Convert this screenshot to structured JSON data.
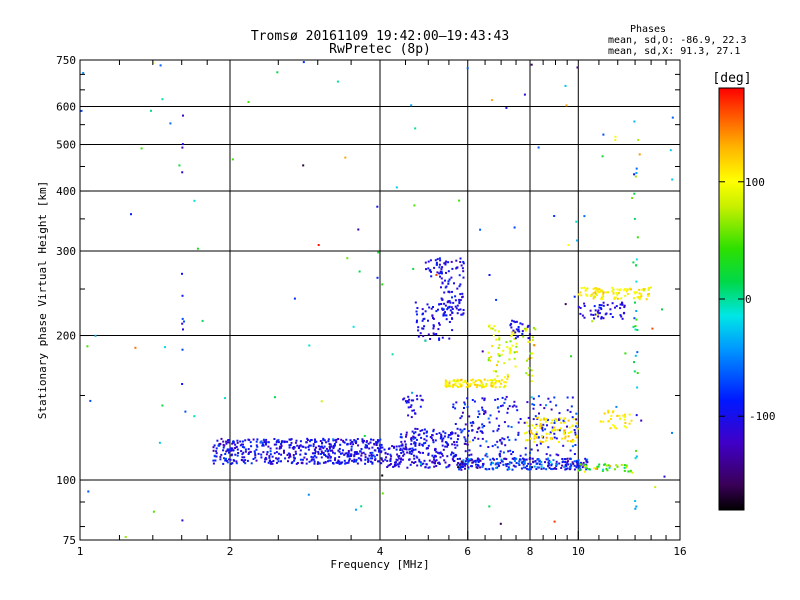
{
  "header": {
    "title_line1": "Tromsø 20161109 19:42:00–19:43:43",
    "title_line2": "RwPretec (8p)",
    "phase_title": "Phases",
    "phase_line_o": "mean, sd,O: -86.9, 22.3",
    "phase_line_x": "mean, sd,X:  91.3, 27.1"
  },
  "colorbar": {
    "unit_label": "[deg]",
    "tick_labels": [
      "100",
      "0",
      "-100"
    ],
    "tick_values": [
      100,
      0,
      -100
    ],
    "range": [
      -180,
      180
    ],
    "colormap": "rainbow (black-violet-blue-cyan-green-yellow-orange-red)"
  },
  "chart_data": {
    "type": "scatter",
    "title": "Tromsø 20161109 19:42:00–19:43:43",
    "subtitle": "RwPretec (8p)",
    "xlabel": "Frequency [MHz]",
    "ylabel": "Stationary phase Virtual Height [km]",
    "xscale": "log",
    "yscale": "log",
    "xlim": [
      1,
      16
    ],
    "ylim": [
      75,
      750
    ],
    "x_ticks": [
      1,
      2,
      4,
      6,
      8,
      10,
      16
    ],
    "x_tick_labels": [
      "1",
      "2",
      "4",
      "6",
      "8",
      "10",
      "16"
    ],
    "x_minor_ticks": [
      1.2,
      1.4,
      1.6,
      1.8,
      2.5,
      3,
      3.5,
      4.5,
      5,
      5.5,
      6.5,
      7,
      7.5,
      8.5,
      9,
      9.5,
      11,
      12,
      13,
      14,
      15
    ],
    "y_ticks": [
      75,
      100,
      200,
      300,
      400,
      500,
      600,
      750
    ],
    "y_tick_labels": [
      "75",
      "100",
      "200",
      "300",
      "400",
      "500",
      "600",
      "750"
    ],
    "grid": true,
    "color_encoding": "phase [deg]",
    "clusters": [
      {
        "name": "E-region low trace",
        "x_range": [
          1.85,
          4.1
        ],
        "y_range": [
          108,
          122
        ],
        "phase_center": -100,
        "phase_spread": 30,
        "count": 520
      },
      {
        "name": "E-region trace extension",
        "x_range": [
          4.1,
          5.7
        ],
        "y_range": [
          106,
          118
        ],
        "phase_center": -105,
        "phase_spread": 22,
        "count": 160
      },
      {
        "name": "E-region upper band",
        "x_range": [
          4.4,
          5.8
        ],
        "y_range": [
          118,
          128
        ],
        "phase_center": -100,
        "phase_spread": 25,
        "count": 90
      },
      {
        "name": "E trace 5.8-10.5 MHz",
        "x_range": [
          5.7,
          10.5
        ],
        "y_range": [
          105,
          111
        ],
        "phase_center": -90,
        "phase_spread": 60,
        "count": 260
      },
      {
        "name": "Sporadic echoes 6-10 MHz",
        "x_range": [
          5.6,
          10.0
        ],
        "y_range": [
          110,
          150
        ],
        "phase_center": -95,
        "phase_spread": 40,
        "count": 220
      },
      {
        "name": "F trace 4.5-4.9 MHz",
        "x_range": [
          4.45,
          4.9
        ],
        "y_range": [
          135,
          150
        ],
        "phase_center": -105,
        "phase_spread": 20,
        "count": 25
      },
      {
        "name": "F1 ordinary 5.5-6.2 MHz",
        "x_range": [
          4.7,
          5.6
        ],
        "y_range": [
          195,
          235
        ],
        "phase_center": -100,
        "phase_spread": 20,
        "count": 70
      },
      {
        "name": "F1 ordinary rising",
        "x_range": [
          5.3,
          5.9
        ],
        "y_range": [
          220,
          265
        ],
        "phase_center": -100,
        "phase_spread": 20,
        "count": 60
      },
      {
        "name": "F upper trace",
        "x_range": [
          4.9,
          5.9
        ],
        "y_range": [
          265,
          290
        ],
        "phase_center": -100,
        "phase_spread": 25,
        "count": 50
      },
      {
        "name": "X-mode trace 5.4-6.6 MHz",
        "x_range": [
          5.4,
          7.2
        ],
        "y_range": [
          156,
          162
        ],
        "phase_center": 105,
        "phase_spread": 25,
        "count": 100
      },
      {
        "name": "X-mode trace 6.6-8 MHz",
        "x_range": [
          6.6,
          8.2
        ],
        "y_range": [
          160,
          215
        ],
        "phase_center": 90,
        "phase_spread": 40,
        "count": 80
      },
      {
        "name": "Ordinary 7.5-8 MHz",
        "x_range": [
          7.3,
          8.0
        ],
        "y_range": [
          195,
          215
        ],
        "phase_center": -100,
        "phase_spread": 20,
        "count": 25
      },
      {
        "name": "X-mode E 8-10 MHz",
        "x_range": [
          7.8,
          10.0
        ],
        "y_range": [
          120,
          135
        ],
        "phase_center": 110,
        "phase_spread": 30,
        "count": 90
      },
      {
        "name": "X-mode 10-14 MHz high",
        "x_range": [
          10.0,
          14.0
        ],
        "y_range": [
          238,
          252
        ],
        "phase_center": 105,
        "phase_spread": 25,
        "count": 90
      },
      {
        "name": "O-mode 10-12 MHz high",
        "x_range": [
          10.0,
          12.5
        ],
        "y_range": [
          215,
          235
        ],
        "phase_center": -100,
        "phase_spread": 25,
        "count": 50
      },
      {
        "name": "X-mode 10.5-13 MHz mid",
        "x_range": [
          11.0,
          13.0
        ],
        "y_range": [
          128,
          140
        ],
        "phase_center": 110,
        "phase_spread": 20,
        "count": 30
      },
      {
        "name": "E trace 10-13 MHz",
        "x_range": [
          10.0,
          12.8
        ],
        "y_range": [
          104,
          108
        ],
        "phase_center": 50,
        "phase_spread": 80,
        "count": 40
      },
      {
        "name": "Vertical scatter 1.6 MHz",
        "x_range": [
          1.6,
          1.61
        ],
        "y_range": [
          80,
          600
        ],
        "phase_center": -100,
        "phase_spread": 40,
        "count": 12
      },
      {
        "name": "Vertical scatter 13 MHz",
        "x_range": [
          12.9,
          13.2
        ],
        "y_range": [
          80,
          560
        ],
        "phase_center": 0,
        "phase_spread": 120,
        "count": 35
      },
      {
        "name": "Background noise",
        "x_range": [
          1.0,
          16.0
        ],
        "y_range": [
          75,
          750
        ],
        "phase_center": 0,
        "phase_spread": 150,
        "count": 120
      }
    ]
  }
}
